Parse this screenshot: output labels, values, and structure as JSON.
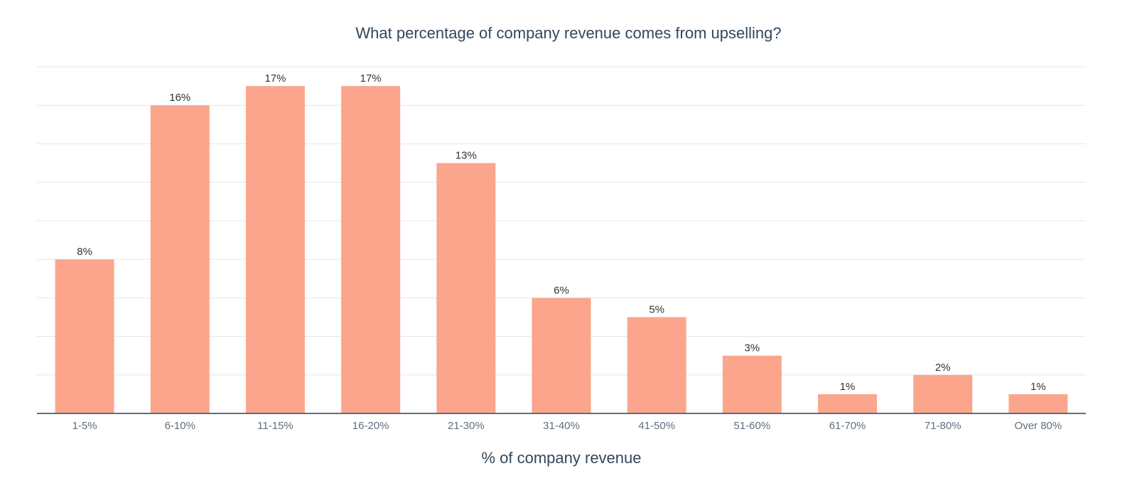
{
  "chart_data": {
    "type": "bar",
    "title": "What percentage of company revenue comes from upselling?",
    "xlabel": "% of company revenue",
    "ylabel": "",
    "categories": [
      "1-5%",
      "6-10%",
      "11-15%",
      "16-20%",
      "21-30%",
      "31-40%",
      "41-50%",
      "51-60%",
      "61-70%",
      "71-80%",
      "Over 80%"
    ],
    "values": [
      8,
      16,
      17,
      17,
      13,
      6,
      5,
      3,
      1,
      2,
      1
    ],
    "data_labels": [
      "8%",
      "16%",
      "17%",
      "17%",
      "13%",
      "6%",
      "5%",
      "3%",
      "1%",
      "2%",
      "1%"
    ],
    "ylim": [
      0,
      18
    ],
    "grid_step": 2,
    "grid": true,
    "legend": "none",
    "colors": {
      "bar": "#FBA68C",
      "axis": "#5f6f80",
      "grid": "#e6e6e6",
      "text": "#33475b"
    }
  }
}
